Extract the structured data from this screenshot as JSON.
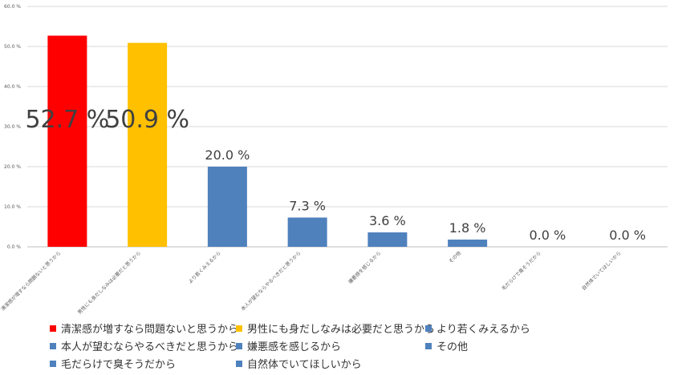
{
  "chart_data": {
    "type": "bar",
    "categories": [
      "清潔感が増すなら問題ないと思うから",
      "男性にも身だしなみは必要だと思うから",
      "より若くみえるから",
      "本人が望むならやるべきだと思うから",
      "嫌悪感を感じるから",
      "その他",
      "毛だらけで臭そうだから",
      "自然体でいてほしいから"
    ],
    "values": [
      52.7,
      50.9,
      20.0,
      7.3,
      3.6,
      1.8,
      0.0,
      0.0
    ],
    "data_labels": [
      "52.7 %",
      "50.9 %",
      "20.0 %",
      "7.3 %",
      "3.6 %",
      "1.8 %",
      "0.0 %",
      "0.0 %"
    ],
    "colors": [
      "#ff0000",
      "#ffc000",
      "#4f81bd",
      "#4f81bd",
      "#4f81bd",
      "#4f81bd",
      "#4f81bd",
      "#4f81bd"
    ],
    "yticks": [
      0,
      10,
      20,
      30,
      40,
      50,
      60
    ],
    "ytick_labels": [
      "0.0 %",
      "10.0 %",
      "20.0 %",
      "30.0 %",
      "40.0 %",
      "50.0 %",
      "60.0 %"
    ],
    "ylim": [
      0,
      60
    ],
    "grid": true,
    "legend_position": "bottom",
    "legend": [
      {
        "label": "清潔感が増すなら問題ないと思うから",
        "color": "#ff0000"
      },
      {
        "label": "男性にも身だしなみは必要だと思うから",
        "color": "#ffc000"
      },
      {
        "label": "より若くみえるから",
        "color": "#4f81bd"
      },
      {
        "label": "本人が望むならやるべきだと思うから",
        "color": "#4f81bd"
      },
      {
        "label": "嫌悪感を感じるから",
        "color": "#4f81bd"
      },
      {
        "label": "その他",
        "color": "#4f81bd"
      },
      {
        "label": "毛だらけで臭そうだから",
        "color": "#4f81bd"
      },
      {
        "label": "自然体でいてほしいから",
        "color": "#4f81bd"
      }
    ]
  }
}
